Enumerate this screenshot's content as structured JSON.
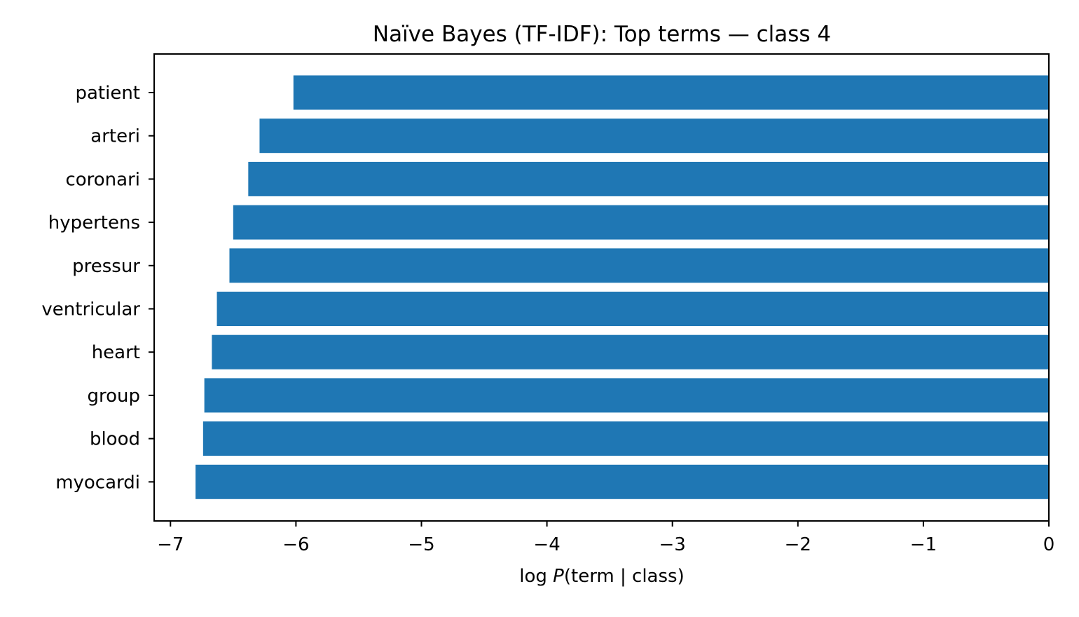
{
  "chart_data": {
    "type": "bar",
    "orientation": "horizontal",
    "title": "Naïve Bayes (TF-IDF): Top terms — class 4",
    "xlabel": "log P(term | class)",
    "ylabel": "",
    "categories": [
      "patient",
      "arteri",
      "coronari",
      "hypertens",
      "pressur",
      "ventricular",
      "heart",
      "group",
      "blood",
      "myocardi"
    ],
    "values": [
      -6.02,
      -6.29,
      -6.38,
      -6.5,
      -6.53,
      -6.63,
      -6.67,
      -6.73,
      -6.74,
      -6.8
    ],
    "xlim": [
      -7.13,
      0
    ],
    "xticks": [
      -7,
      -6,
      -5,
      -4,
      -3,
      -2,
      -1,
      0
    ],
    "xtick_labels": [
      "−7",
      "−6",
      "−5",
      "−4",
      "−3",
      "−2",
      "−1",
      "0"
    ],
    "bar_color": "#1f77b4",
    "grid": false,
    "legend": false
  }
}
